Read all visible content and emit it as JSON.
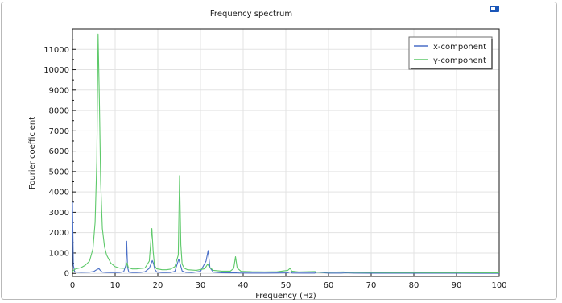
{
  "chart_data": {
    "type": "line",
    "title": "Frequency spectrum",
    "xlabel": "Frequency (Hz)",
    "ylabel": "Fourier coefficient",
    "xlim": [
      0,
      100
    ],
    "ylim": [
      -150,
      12000
    ],
    "xticks": [
      0,
      10,
      20,
      30,
      40,
      50,
      60,
      70,
      80,
      90,
      100
    ],
    "yticks": [
      0,
      1000,
      2000,
      3000,
      4000,
      5000,
      6000,
      7000,
      8000,
      9000,
      10000,
      11000
    ],
    "grid": true,
    "legend_position": "top-right",
    "series": [
      {
        "name": "x-component",
        "color": "#4a6fc7",
        "x": [
          0,
          0.2,
          0.5,
          1.0,
          2,
          3,
          4,
          5,
          5.8,
          6.2,
          6.5,
          7,
          8,
          9,
          10,
          11,
          12,
          12.5,
          12.7,
          12.9,
          13.2,
          14,
          15,
          16,
          17,
          18,
          18.7,
          19.0,
          19.3,
          19.8,
          21,
          22,
          23,
          24,
          24.9,
          25.3,
          25.7,
          26.5,
          28,
          30,
          31.3,
          31.8,
          32.2,
          33,
          35,
          37,
          38.2,
          38.5,
          39,
          42,
          45,
          48,
          50.5,
          51,
          51.5,
          54,
          56.8,
          57.2,
          60,
          63,
          64,
          66,
          70,
          75,
          80,
          85,
          90,
          95,
          100
        ],
        "y": [
          3500,
          400,
          80,
          60,
          50,
          55,
          60,
          90,
          200,
          230,
          150,
          60,
          45,
          40,
          40,
          45,
          80,
          400,
          1580,
          300,
          60,
          40,
          40,
          50,
          80,
          250,
          630,
          480,
          200,
          60,
          40,
          40,
          45,
          100,
          700,
          420,
          120,
          50,
          40,
          100,
          600,
          1120,
          280,
          60,
          30,
          25,
          30,
          25,
          20,
          15,
          15,
          20,
          30,
          70,
          20,
          15,
          15,
          60,
          15,
          15,
          30,
          15,
          12,
          10,
          10,
          8,
          8,
          5,
          5
        ]
      },
      {
        "name": "y-component",
        "color": "#5ec96a",
        "x": [
          0,
          0.5,
          1,
          2,
          3,
          4,
          4.8,
          5.3,
          5.7,
          6.0,
          6.3,
          6.6,
          7.0,
          7.5,
          8,
          9,
          10,
          11,
          12,
          12.5,
          12.8,
          13.1,
          14,
          15,
          16,
          17,
          18,
          18.6,
          18.9,
          19.2,
          19.7,
          21,
          22,
          23,
          24,
          24.8,
          25.1,
          25.4,
          25.7,
          26.2,
          27,
          29,
          31,
          31.7,
          32.1,
          33,
          35,
          37,
          37.8,
          38.2,
          38.6,
          39.5,
          42,
          45,
          48,
          50.5,
          51.0,
          51.4,
          53,
          56.8,
          57.2,
          60,
          63.5,
          64,
          66,
          70,
          75,
          80,
          85,
          90,
          95,
          100
        ],
        "y": [
          100,
          200,
          230,
          280,
          400,
          600,
          1200,
          2500,
          5500,
          11750,
          8500,
          4500,
          2200,
          1300,
          900,
          500,
          330,
          260,
          250,
          280,
          520,
          280,
          220,
          220,
          240,
          270,
          600,
          2200,
          1100,
          400,
          230,
          180,
          180,
          210,
          330,
          900,
          4800,
          1400,
          450,
          250,
          180,
          150,
          230,
          460,
          300,
          150,
          110,
          110,
          250,
          820,
          260,
          100,
          80,
          70,
          80,
          150,
          250,
          110,
          70,
          90,
          60,
          60,
          70,
          60,
          55,
          50,
          45,
          45,
          40,
          40,
          35,
          30
        ]
      }
    ]
  }
}
